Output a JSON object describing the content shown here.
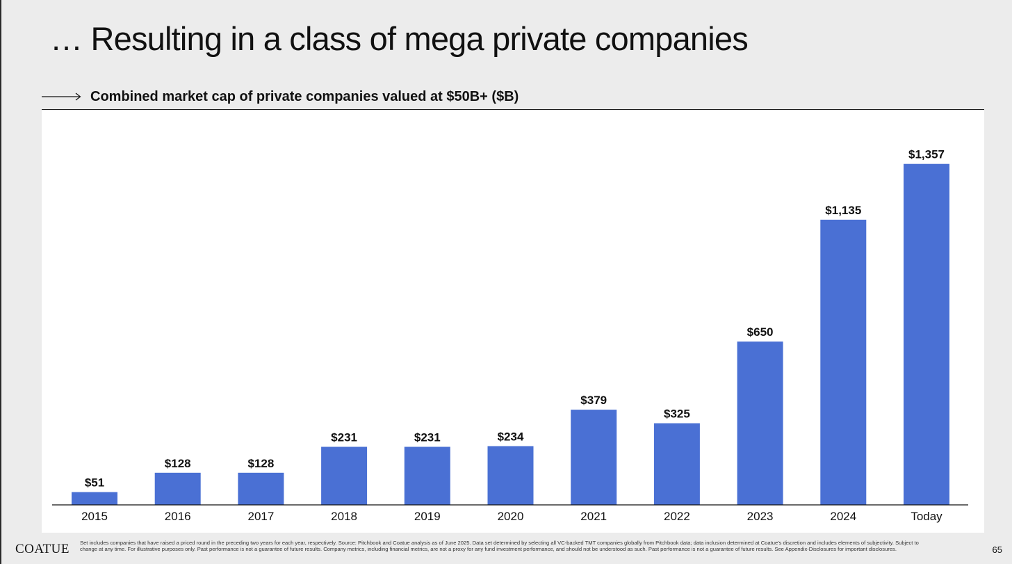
{
  "slide": {
    "title": "… Resulting in a class of mega private companies",
    "subtitle": "Combined market cap of private companies valued at $50B+ ($B)",
    "footnote": "Set includes companies that have raised a priced round in the preceding two years for each year, respectively. Source: Pitchbook and Coatue analysis as of June 2025. Data set determined by selecting all VC-backed TMT companies globally from Pitchbook data; data inclusion determined at Coatue's discretion and includes elements of subjectivity. Subject to change at any time. For illustrative purposes only. Past performance is not a guarantee of future results. Company metrics, including financial metrics, are not a proxy for any fund investment performance, and should not be understood as such. Past performance is not a guarantee of future results. See Appendix-Disclosures for important disclosures.",
    "brand": "COATUE",
    "page_number": "65"
  },
  "colors": {
    "bar": "#4a70d4",
    "background": "#ececec",
    "panel": "#ffffff"
  },
  "icons": {
    "subtitle_arrow": "long-right-arrow-icon"
  },
  "chart_data": {
    "type": "bar",
    "title": "Combined market cap of private companies valued at $50B+ ($B)",
    "xlabel": "",
    "ylabel": "",
    "categories": [
      "2015",
      "2016",
      "2017",
      "2018",
      "2019",
      "2020",
      "2021",
      "2022",
      "2023",
      "2024",
      "Today"
    ],
    "values": [
      51,
      128,
      128,
      231,
      231,
      234,
      379,
      325,
      650,
      1135,
      1357
    ],
    "data_labels": [
      "$51",
      "$128",
      "$128",
      "$231",
      "$231",
      "$234",
      "$379",
      "$325",
      "$650",
      "$1,135",
      "$1,357"
    ],
    "ylim": [
      0,
      1500
    ],
    "grid": false,
    "legend": "none"
  }
}
